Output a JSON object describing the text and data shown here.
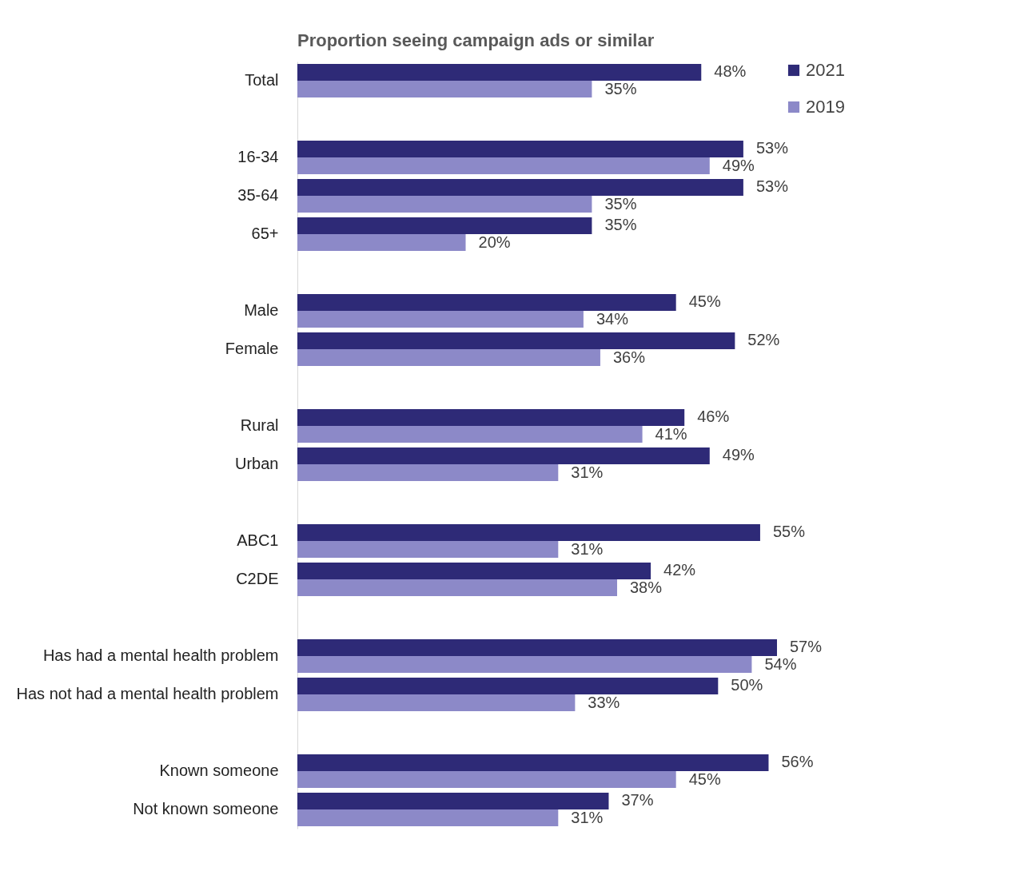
{
  "chart_data": {
    "type": "bar",
    "orientation": "horizontal",
    "title": "Proportion seeing campaign ads or similar",
    "categories": [
      "Total",
      null,
      "16-34",
      "35-64",
      "65+",
      null,
      "Male",
      "Female",
      null,
      "Rural",
      "Urban",
      null,
      "ABC1",
      "C2DE",
      null,
      "Has had a mental health problem",
      "Has not had a mental health problem",
      null,
      "Known someone",
      "Not known someone"
    ],
    "series": [
      {
        "name": "2021",
        "color": "#2e2a77",
        "values": [
          48,
          null,
          53,
          53,
          35,
          null,
          45,
          52,
          null,
          46,
          49,
          null,
          55,
          42,
          null,
          57,
          50,
          null,
          56,
          37
        ],
        "value_labels": [
          "48%",
          null,
          "53%",
          "53%",
          "35%",
          null,
          "45%",
          "52%",
          null,
          "46%",
          "49%",
          null,
          "55%",
          "42%",
          null,
          "57%",
          "50%",
          null,
          "56%",
          "37%"
        ]
      },
      {
        "name": "2019",
        "color": "#8c89c8",
        "values": [
          35,
          null,
          49,
          35,
          20,
          null,
          34,
          36,
          null,
          41,
          31,
          null,
          31,
          38,
          null,
          54,
          33,
          null,
          45,
          31
        ],
        "value_labels": [
          "35%",
          null,
          "49%",
          "35%",
          "20%",
          null,
          "34%",
          "36%",
          null,
          "41%",
          "31%",
          null,
          "31%",
          "38%",
          null,
          "54%",
          "33%",
          null,
          "45%",
          "31%"
        ]
      }
    ],
    "legend": "right",
    "grid": false
  }
}
